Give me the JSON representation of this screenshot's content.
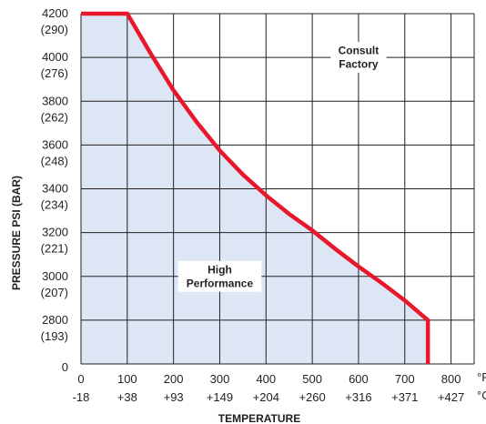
{
  "chart_data": {
    "type": "area",
    "x_unit_f": "°F",
    "x_unit_c": "°C",
    "xlabel": "TEMPERATURE",
    "ylabel": "PRESSURE PSI (BAR)",
    "xlim": [
      0,
      850
    ],
    "ylim": [
      2600,
      4200
    ],
    "x_ticks": [
      {
        "f": "0",
        "c": "-18"
      },
      {
        "f": "100",
        "c": "+38"
      },
      {
        "f": "200",
        "c": "+93"
      },
      {
        "f": "300",
        "c": "+149"
      },
      {
        "f": "400",
        "c": "+204"
      },
      {
        "f": "500",
        "c": "+260"
      },
      {
        "f": "600",
        "c": "+316"
      },
      {
        "f": "700",
        "c": "+371"
      },
      {
        "f": "800",
        "c": "+427"
      }
    ],
    "y_ticks": [
      {
        "psi": "4200",
        "bar": "(290)"
      },
      {
        "psi": "4000",
        "bar": "(276)"
      },
      {
        "psi": "3800",
        "bar": "(262)"
      },
      {
        "psi": "3600",
        "bar": "(248)"
      },
      {
        "psi": "3400",
        "bar": "(234)"
      },
      {
        "psi": "3200",
        "bar": "(221)"
      },
      {
        "psi": "3000",
        "bar": "(207)"
      },
      {
        "psi": "2800",
        "bar": "(193)"
      },
      {
        "psi": "0",
        "bar": ""
      }
    ],
    "series": [
      {
        "x": [
          0,
          100,
          150,
          200,
          250,
          300,
          350,
          400,
          450,
          500,
          550,
          600,
          650,
          700,
          750,
          750
        ],
        "y": [
          4200,
          4200,
          4020,
          3850,
          3705,
          3575,
          3465,
          3370,
          3285,
          3210,
          3125,
          3045,
          2970,
          2890,
          2800,
          2600
        ]
      }
    ],
    "annotations": [
      {
        "lines": [
          "Consult",
          "Factory"
        ],
        "x": 600,
        "y": 4000
      },
      {
        "lines": [
          "High",
          "Performance"
        ],
        "x": 300,
        "y": 3000
      }
    ],
    "colors": {
      "line": "#e8172b",
      "fill": "#dce6f5",
      "grid": "#231f20"
    }
  }
}
